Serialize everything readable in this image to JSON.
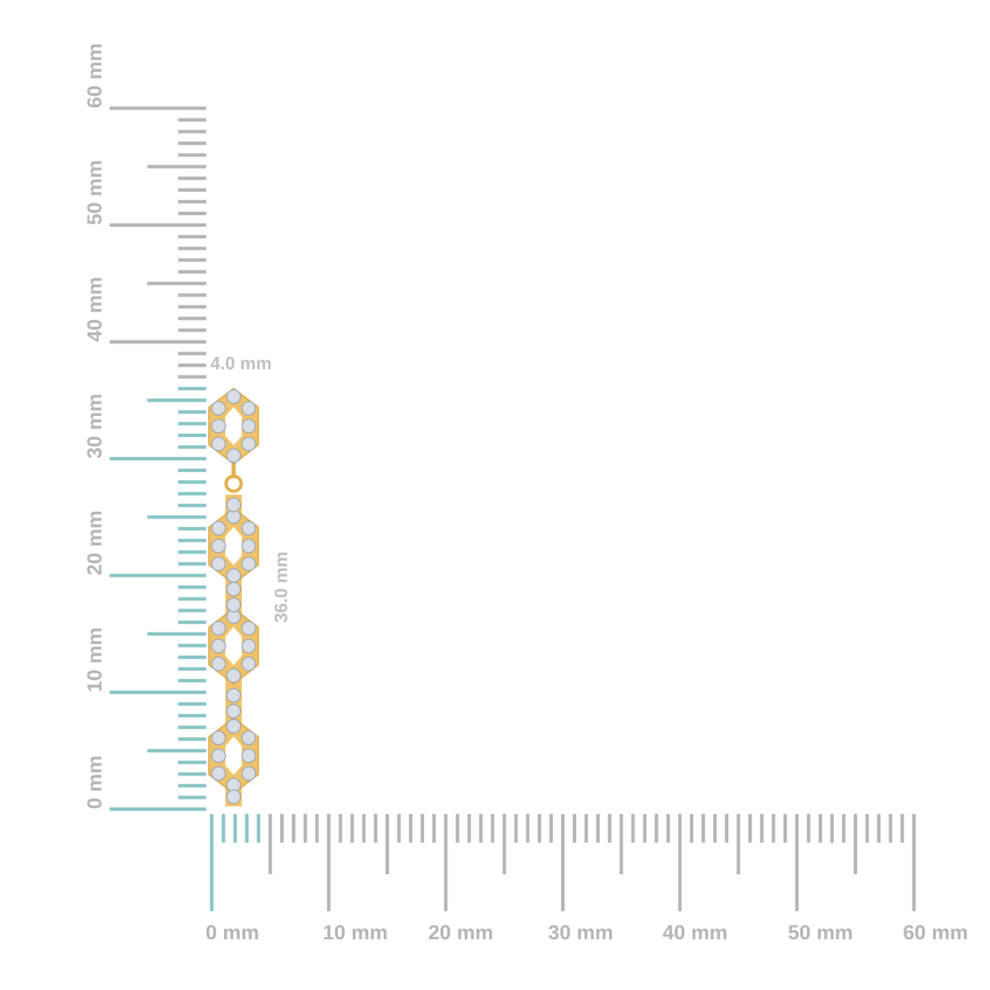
{
  "colors": {
    "ruler": "#b3b3b3",
    "highlight": "#86c4c4",
    "gold": "#f0c36a",
    "stone": "#d9dee4"
  },
  "vertical_ruler": {
    "labels": [
      "0 mm",
      "10 mm",
      "20 mm",
      "30 mm",
      "40 mm",
      "50 mm",
      "60 mm"
    ],
    "max_mm": 60,
    "highlight_mm": 36
  },
  "horizontal_ruler": {
    "labels": [
      "0 mm",
      "10 mm",
      "20 mm",
      "30 mm",
      "40 mm",
      "50 mm",
      "60 mm"
    ],
    "max_mm": 60,
    "highlight_mm": 4
  },
  "dimensions": {
    "width": "4.0 mm",
    "height": "36.0 mm"
  },
  "product": {
    "icon": "hexagon-link-diamond-earring"
  }
}
